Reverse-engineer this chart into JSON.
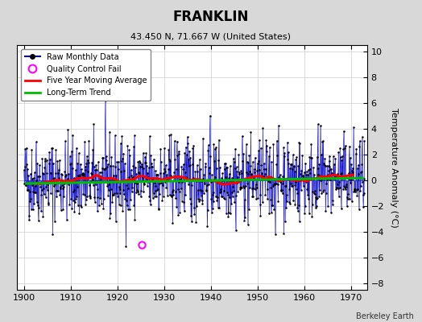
{
  "title": "FRANKLIN",
  "subtitle": "43.450 N, 71.667 W (United States)",
  "credit": "Berkeley Earth",
  "ylabel": "Temperature Anomaly (°C)",
  "xlim": [
    1898.5,
    1973.5
  ],
  "ylim": [
    -8.5,
    10.5
  ],
  "yticks": [
    -8,
    -6,
    -4,
    -2,
    0,
    2,
    4,
    6,
    8,
    10
  ],
  "xticks": [
    1900,
    1910,
    1920,
    1930,
    1940,
    1950,
    1960,
    1970
  ],
  "raw_line_color": "#0000cc",
  "raw_marker_color": "#000000",
  "moving_avg_color": "#ff0000",
  "trend_color": "#00bb00",
  "qc_fail_color": "#ff00ff",
  "background_color": "#d8d8d8",
  "plot_bg_color": "#ffffff",
  "seed": 42,
  "start_year": 1900,
  "end_year": 1973,
  "trend_slope": 0.006,
  "trend_intercept": -0.25,
  "qc_fail_year": 1925.3,
  "qc_fail_value": -5.0
}
